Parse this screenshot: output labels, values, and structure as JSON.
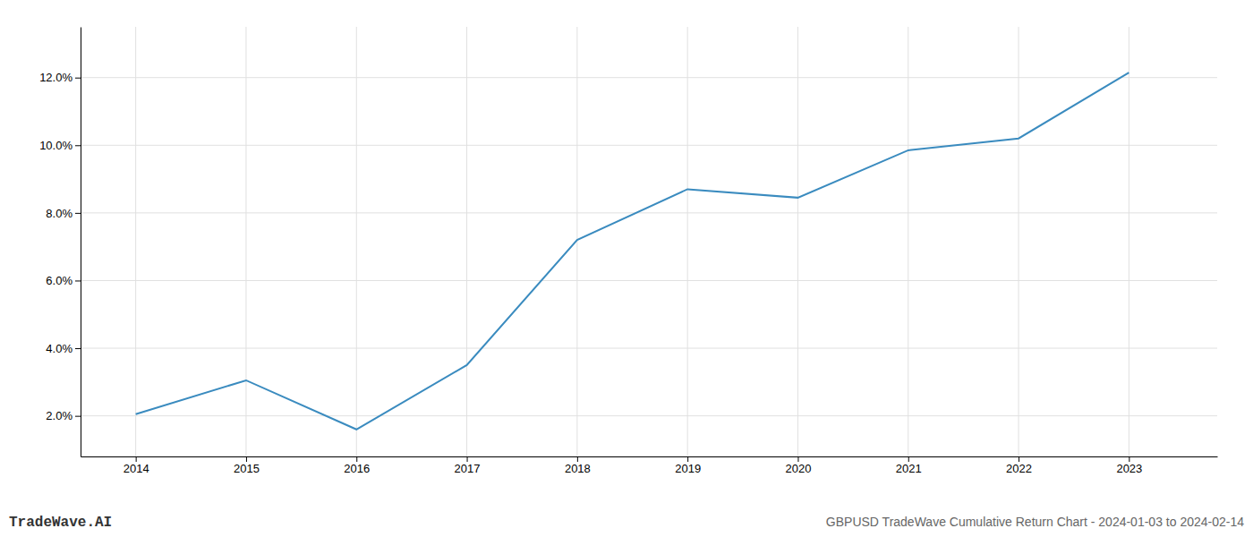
{
  "chart_data": {
    "type": "line",
    "title": "GBPUSD TradeWave Cumulative Return Chart - 2024-01-03 to 2024-02-14",
    "annotations": [
      "TradeWave.AI"
    ],
    "x": [
      2014,
      2015,
      2016,
      2017,
      2018,
      2019,
      2020,
      2021,
      2022,
      2023
    ],
    "values": [
      2.05,
      3.05,
      1.6,
      3.5,
      7.2,
      8.7,
      8.45,
      9.85,
      10.2,
      12.15
    ],
    "color": "#3a8bbf",
    "xlim": [
      2013.5,
      2023.8
    ],
    "ylim": [
      0.8,
      13.5
    ],
    "xticks": [
      2014,
      2015,
      2016,
      2017,
      2018,
      2019,
      2020,
      2021,
      2022,
      2023
    ],
    "yticks": [
      {
        "value": 2.0,
        "label": "2.0%"
      },
      {
        "value": 4.0,
        "label": "4.0%"
      },
      {
        "value": 6.0,
        "label": "6.0%"
      },
      {
        "value": 8.0,
        "label": "8.0%"
      },
      {
        "value": 10.0,
        "label": "10.0%"
      },
      {
        "value": 12.0,
        "label": "12.0%"
      }
    ],
    "grid": true
  }
}
